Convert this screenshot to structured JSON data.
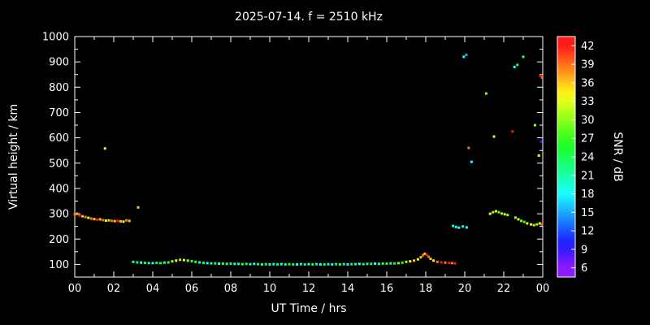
{
  "title": "2025-07-14. f = 2510 kHz",
  "chart_data": {
    "type": "scatter",
    "title": "2025-07-14. f = 2510 kHz",
    "xlabel": "UT Time / hrs",
    "ylabel": "Virtual height / km",
    "colorbar_label": "SNR / dB",
    "background": "#000000",
    "foreground": "#ffffff",
    "xlim": [
      0,
      24
    ],
    "ylim": [
      50,
      1000
    ],
    "snr_lim": [
      4.5,
      43.5
    ],
    "x_ticks": {
      "values": [
        0,
        2,
        4,
        6,
        8,
        10,
        12,
        14,
        16,
        18,
        20,
        22,
        24
      ],
      "labels": [
        "00",
        "02",
        "04",
        "06",
        "08",
        "10",
        "12",
        "14",
        "16",
        "18",
        "20",
        "22",
        "00"
      ]
    },
    "y_ticks": [
      100,
      200,
      300,
      400,
      500,
      600,
      700,
      800,
      900,
      1000
    ],
    "snr_ticks": [
      6,
      9,
      12,
      15,
      18,
      21,
      24,
      27,
      30,
      33,
      36,
      39,
      42
    ],
    "points": [
      [
        0,
        298,
        39
      ],
      [
        0.12,
        300,
        36
      ],
      [
        0.25,
        293,
        42
      ],
      [
        0.4,
        290,
        36
      ],
      [
        0.55,
        287,
        39
      ],
      [
        0.7,
        284,
        33
      ],
      [
        0.85,
        281,
        39
      ],
      [
        1,
        279,
        36
      ],
      [
        1.15,
        277,
        42
      ],
      [
        1.3,
        278,
        36
      ],
      [
        1.45,
        275,
        39
      ],
      [
        1.6,
        273,
        33
      ],
      [
        1.75,
        274,
        36
      ],
      [
        1.9,
        272,
        39
      ],
      [
        2.05,
        271,
        36
      ],
      [
        2.2,
        272,
        42
      ],
      [
        2.35,
        270,
        36
      ],
      [
        2.5,
        269,
        33
      ],
      [
        2.65,
        274,
        39
      ],
      [
        2.8,
        272,
        36
      ],
      [
        1.55,
        558,
        33
      ],
      [
        3.25,
        325,
        36
      ],
      [
        3,
        110,
        21
      ],
      [
        3.2,
        108,
        24
      ],
      [
        3.4,
        107,
        18
      ],
      [
        3.6,
        106,
        27
      ],
      [
        3.8,
        105,
        21
      ],
      [
        4,
        105,
        18
      ],
      [
        4.2,
        106,
        24
      ],
      [
        4.4,
        105,
        27
      ],
      [
        4.6,
        107,
        21
      ],
      [
        4.8,
        108,
        24
      ],
      [
        5,
        112,
        30
      ],
      [
        5.2,
        115,
        33
      ],
      [
        5.4,
        118,
        30
      ],
      [
        5.6,
        117,
        33
      ],
      [
        5.8,
        115,
        30
      ],
      [
        6,
        113,
        27
      ],
      [
        6.2,
        110,
        24
      ],
      [
        6.4,
        108,
        21
      ],
      [
        6.6,
        106,
        24
      ],
      [
        6.8,
        105,
        18
      ],
      [
        7,
        104,
        21
      ],
      [
        7.2,
        104,
        24
      ],
      [
        7.4,
        103,
        18
      ],
      [
        7.6,
        103,
        27
      ],
      [
        7.8,
        102,
        21
      ],
      [
        8,
        103,
        24
      ],
      [
        8.2,
        102,
        18
      ],
      [
        8.4,
        102,
        21
      ],
      [
        8.6,
        101,
        27
      ],
      [
        8.8,
        102,
        24
      ],
      [
        9,
        101,
        21
      ],
      [
        9.2,
        102,
        18
      ],
      [
        9.4,
        101,
        24
      ],
      [
        9.6,
        100,
        21
      ],
      [
        9.8,
        101,
        27
      ],
      [
        10,
        100,
        18
      ],
      [
        10.2,
        101,
        21
      ],
      [
        10.4,
        100,
        24
      ],
      [
        10.6,
        101,
        18
      ],
      [
        10.8,
        100,
        21
      ],
      [
        11,
        101,
        27
      ],
      [
        11.2,
        100,
        24
      ],
      [
        11.4,
        100,
        18
      ],
      [
        11.6,
        101,
        21
      ],
      [
        11.8,
        100,
        24
      ],
      [
        12,
        101,
        18
      ],
      [
        12.2,
        100,
        27
      ],
      [
        12.4,
        101,
        21
      ],
      [
        12.6,
        100,
        18
      ],
      [
        12.8,
        100,
        24
      ],
      [
        13,
        101,
        21
      ],
      [
        13.2,
        100,
        18
      ],
      [
        13.4,
        101,
        24
      ],
      [
        13.6,
        100,
        27
      ],
      [
        13.8,
        101,
        21
      ],
      [
        14,
        100,
        18
      ],
      [
        14.2,
        101,
        24
      ],
      [
        14.4,
        101,
        21
      ],
      [
        14.6,
        102,
        18
      ],
      [
        14.8,
        101,
        27
      ],
      [
        15,
        102,
        21
      ],
      [
        15.2,
        102,
        24
      ],
      [
        15.4,
        103,
        18
      ],
      [
        15.6,
        102,
        21
      ],
      [
        15.8,
        103,
        24
      ],
      [
        16,
        103,
        27
      ],
      [
        16.2,
        104,
        21
      ],
      [
        16.4,
        104,
        24
      ],
      [
        16.6,
        105,
        30
      ],
      [
        16.8,
        107,
        27
      ],
      [
        17,
        110,
        30
      ],
      [
        17.2,
        112,
        33
      ],
      [
        17.4,
        115,
        36
      ],
      [
        17.6,
        120,
        33
      ],
      [
        17.75,
        128,
        36
      ],
      [
        17.85,
        136,
        39
      ],
      [
        17.95,
        142,
        36
      ],
      [
        18.05,
        138,
        42
      ],
      [
        18.15,
        130,
        39
      ],
      [
        18.25,
        122,
        36
      ],
      [
        18.4,
        115,
        33
      ],
      [
        18.6,
        110,
        39
      ],
      [
        18.8,
        108,
        42
      ],
      [
        19,
        107,
        39
      ],
      [
        19.2,
        106,
        42
      ],
      [
        19.35,
        105,
        39
      ],
      [
        19.5,
        104,
        42
      ],
      [
        19.4,
        252,
        21
      ],
      [
        19.55,
        248,
        18
      ],
      [
        19.7,
        245,
        18
      ],
      [
        19.9,
        250,
        21
      ],
      [
        20.1,
        246,
        18
      ],
      [
        19.95,
        920,
        18
      ],
      [
        20.08,
        928,
        15
      ],
      [
        20.2,
        560,
        39
      ],
      [
        20.35,
        505,
        18
      ],
      [
        21.1,
        775,
        30
      ],
      [
        21.5,
        605,
        33
      ],
      [
        21.3,
        300,
        33
      ],
      [
        21.45,
        306,
        30
      ],
      [
        21.6,
        310,
        33
      ],
      [
        21.75,
        306,
        27
      ],
      [
        21.9,
        301,
        30
      ],
      [
        22.05,
        298,
        33
      ],
      [
        22.2,
        295,
        30
      ],
      [
        22.45,
        625,
        42
      ],
      [
        22.55,
        880,
        18
      ],
      [
        22.7,
        888,
        24
      ],
      [
        22.6,
        285,
        30
      ],
      [
        22.75,
        278,
        33
      ],
      [
        22.9,
        272,
        30
      ],
      [
        23.05,
        268,
        27
      ],
      [
        23.2,
        262,
        33
      ],
      [
        23,
        920,
        21
      ],
      [
        23.4,
        258,
        33
      ],
      [
        23.55,
        255,
        36
      ],
      [
        23.6,
        650,
        30
      ],
      [
        23.7,
        258,
        30
      ],
      [
        23.8,
        530,
        33
      ],
      [
        23.85,
        262,
        33
      ],
      [
        23.92,
        585,
        9
      ],
      [
        23.88,
        845,
        42
      ],
      [
        23.97,
        838,
        39
      ],
      [
        23.95,
        258,
        39
      ]
    ]
  }
}
